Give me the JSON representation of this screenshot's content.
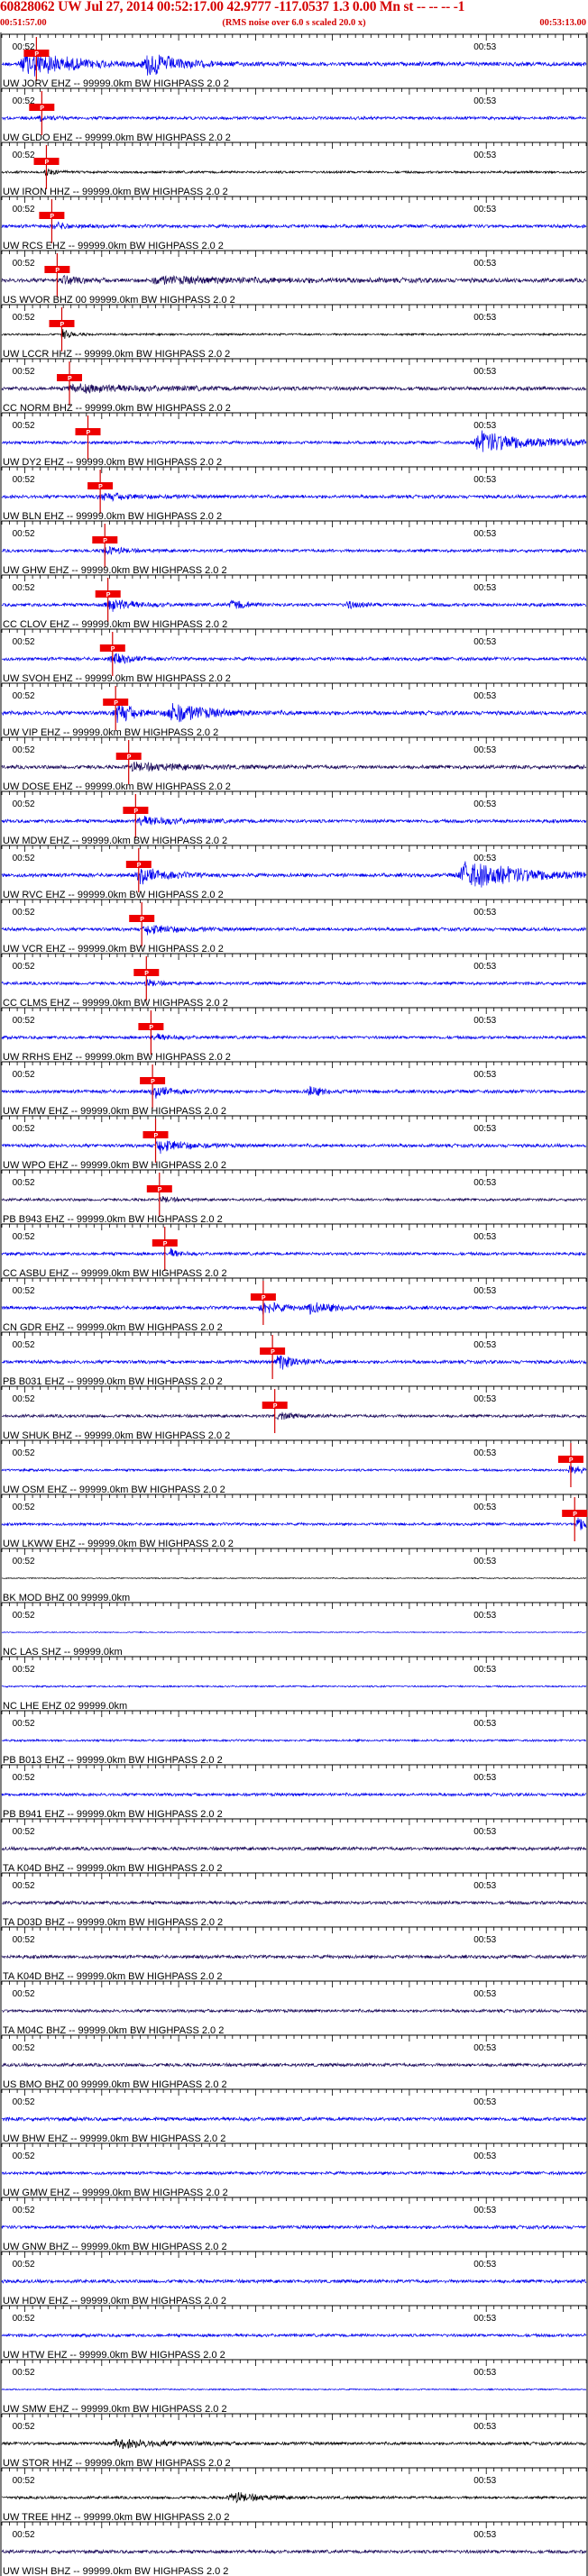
{
  "header": {
    "title": "60828062 UW Jul 27, 2014 00:52:17.00   42.9777 -117.0537  1.3 0.00 Mn st -- -- --  -1",
    "start_time": "00:51:57.00",
    "subtitle": "(RMS noise over 6.0 s scaled 20.0 x)",
    "end_time": "00:53:13.00"
  },
  "colors": {
    "title": "#d40000",
    "trace_blue": "#0000ee",
    "trace_dark": "#1a0a5a",
    "trace_black": "#000000",
    "pick_box": "#ee0000",
    "pick_line": "#d40000",
    "axis": "#000000"
  },
  "chart_data": {
    "type": "line",
    "title": "60828062 UW Jul 27, 2014 00:52:17.00   42.9777 -117.0537  1.3 0.00 Mn st -- -- --  -1",
    "x_start": "00:51:57.00",
    "x_end": "00:53:13.00",
    "tick_labels": [
      "00:52",
      "00:53"
    ],
    "tick_times_s": [
      3,
      63
    ],
    "axis_range_s": [
      0,
      76
    ],
    "pick_label": "P",
    "traces": [
      {
        "label": "UW JORV EHZ -- 99999.0km BW  HIGHPASS  2.0  2",
        "color": "blue",
        "pick_s": 4.5,
        "amp": 0.6,
        "events": [
          [
            3,
            10,
            7
          ],
          [
            19,
            6,
            6
          ]
        ]
      },
      {
        "label": "UW GLDO EHZ -- 99999.0km BW  HIGHPASS  2.0  2",
        "color": "blue",
        "pick_s": 5.2,
        "amp": 0.45,
        "events": [
          [
            5,
            3,
            2
          ]
        ]
      },
      {
        "label": "UW IRON HHZ -- 99999.0km BW  HIGHPASS  2.0  2",
        "color": "black",
        "pick_s": 5.8,
        "amp": 0.35,
        "events": [
          [
            5.8,
            2,
            3
          ]
        ]
      },
      {
        "label": "UW RCS EHZ -- 99999.0km BW  HIGHPASS  2.0  2",
        "color": "blue",
        "pick_s": 6.5,
        "amp": 0.5,
        "events": [
          [
            7,
            3,
            2
          ]
        ]
      },
      {
        "label": "US WVOR BHZ 00 99999.0km BW  HIGHPASS  2.0  2",
        "color": "dark",
        "pick_s": 7.2,
        "amp": 0.6,
        "events": [
          [
            8,
            4,
            2
          ],
          [
            20,
            30,
            1.5
          ]
        ]
      },
      {
        "label": "UW LCCR HHZ -- 99999.0km BW  HIGHPASS  2.0  2",
        "color": "black",
        "pick_s": 7.8,
        "amp": 0.3,
        "events": [
          [
            8,
            2,
            5
          ]
        ]
      },
      {
        "label": "CC NORM BHZ -- 99999.0km BW  HIGHPASS  2.0  2",
        "color": "dark",
        "pick_s": 8.8,
        "amp": 0.55,
        "events": [
          [
            9,
            20,
            2
          ]
        ]
      },
      {
        "label": "UW DY2 EHZ -- 99999.0km BW  HIGHPASS  2.0  2",
        "color": "blue",
        "pick_s": 11.2,
        "amp": 0.45,
        "events": [
          [
            62,
            14,
            7
          ]
        ]
      },
      {
        "label": "UW BLN EHZ -- 99999.0km BW  HIGHPASS  2.0  2",
        "color": "blue",
        "pick_s": 12.8,
        "amp": 0.5,
        "events": [
          [
            13,
            8,
            2
          ]
        ]
      },
      {
        "label": "UW GHW EHZ -- 99999.0km BW  HIGHPASS  2.0  2",
        "color": "blue",
        "pick_s": 13.4,
        "amp": 0.45,
        "events": [
          [
            13.5,
            4,
            3
          ]
        ]
      },
      {
        "label": "CC CLOV EHZ -- 99999.0km BW  HIGHPASS  2.0  2",
        "color": "blue",
        "pick_s": 13.8,
        "amp": 0.5,
        "events": [
          [
            14,
            5,
            4
          ],
          [
            30,
            3,
            3
          ],
          [
            45,
            3,
            2
          ]
        ]
      },
      {
        "label": "UW SVOH EHZ -- 99999.0km BW  HIGHPASS  2.0  2",
        "color": "blue",
        "pick_s": 14.4,
        "amp": 0.5,
        "events": [
          [
            14.5,
            4,
            3
          ]
        ]
      },
      {
        "label": "UW VIP EHZ -- 99999.0km BW  HIGHPASS  2.0  2",
        "color": "blue",
        "pick_s": 14.8,
        "amp": 0.6,
        "events": [
          [
            15,
            4,
            5
          ],
          [
            22,
            8,
            5
          ]
        ]
      },
      {
        "label": "UW DOSE EHZ -- 99999.0km BW  HIGHPASS  2.0  2",
        "color": "dark",
        "pick_s": 16.5,
        "amp": 0.55,
        "events": [
          [
            17,
            12,
            2
          ]
        ]
      },
      {
        "label": "UW MDW EHZ -- 99999.0km BW  HIGHPASS  2.0  2",
        "color": "blue",
        "pick_s": 17.4,
        "amp": 0.5,
        "events": [
          [
            18,
            10,
            2.5
          ]
        ]
      },
      {
        "label": "UW RVC EHZ -- 99999.0km BW  HIGHPASS  2.0  2",
        "color": "blue",
        "pick_s": 17.8,
        "amp": 0.55,
        "events": [
          [
            18,
            6,
            4
          ],
          [
            60,
            16,
            7
          ]
        ]
      },
      {
        "label": "UW VCR EHZ -- 99999.0km BW  HIGHPASS  2.0  2",
        "color": "blue",
        "pick_s": 18.2,
        "amp": 0.5,
        "events": [
          [
            19,
            6,
            3
          ]
        ]
      },
      {
        "label": "CC CLMS EHZ -- 99999.0km BW  HIGHPASS  2.0  2",
        "color": "blue",
        "pick_s": 18.8,
        "amp": 0.45,
        "events": [
          [
            19,
            3,
            2
          ]
        ]
      },
      {
        "label": "UW RRHS EHZ -- 99999.0km BW  HIGHPASS  2.0  2",
        "color": "blue",
        "pick_s": 19.4,
        "amp": 0.45,
        "events": [
          [
            20,
            4,
            2
          ]
        ]
      },
      {
        "label": "UW FMW EHZ -- 99999.0km BW  HIGHPASS  2.0  2",
        "color": "blue",
        "pick_s": 19.6,
        "amp": 0.5,
        "events": [
          [
            20,
            4,
            3
          ],
          [
            40,
            3,
            3
          ]
        ]
      },
      {
        "label": "UW WPO EHZ -- 99999.0km BW  HIGHPASS  2.0  2",
        "color": "blue",
        "pick_s": 20,
        "amp": 0.5,
        "events": [
          [
            20.5,
            6,
            4
          ]
        ]
      },
      {
        "label": "PB B943 EHZ -- 99999.0km BW  HIGHPASS  2.0  2",
        "color": "dark",
        "pick_s": 20.5,
        "amp": 0.4,
        "events": [
          [
            21,
            3,
            2
          ]
        ]
      },
      {
        "label": "CC ASBU EHZ -- 99999.0km BW  HIGHPASS  2.0  2",
        "color": "blue",
        "pick_s": 21.2,
        "amp": 0.45,
        "events": [
          [
            22,
            2,
            3
          ]
        ]
      },
      {
        "label": "CN GDR EHZ -- 99999.0km BW  HIGHPASS  2.0  2",
        "color": "blue",
        "pick_s": 34,
        "amp": 0.5,
        "events": [
          [
            34,
            4,
            4
          ],
          [
            40,
            6,
            3
          ]
        ]
      },
      {
        "label": "PB B031 EHZ -- 99999.0km BW  HIGHPASS  2.0  2",
        "color": "blue",
        "pick_s": 35.2,
        "amp": 0.5,
        "events": [
          [
            36,
            4,
            5
          ]
        ]
      },
      {
        "label": "UW SHUK BHZ -- 99999.0km BW  HIGHPASS  2.0  2",
        "color": "dark",
        "pick_s": 35.5,
        "amp": 0.45,
        "events": [
          [
            36,
            4,
            2
          ]
        ]
      },
      {
        "label": "UW OSM EHZ -- 99999.0km BW  HIGHPASS  2.0  2",
        "color": "blue",
        "pick_s": 74,
        "amp": 0.35,
        "events": [
          [
            74,
            2,
            5
          ]
        ]
      },
      {
        "label": "UW LKWW EHZ -- 99999.0km BW  HIGHPASS  2.0  2",
        "color": "blue",
        "pick_s": 74.5,
        "amp": 0.4,
        "events": [
          [
            75,
            2,
            6
          ]
        ]
      },
      {
        "label": "BK MOD BHZ 00 99999.0km",
        "color": "black",
        "pick_s": null,
        "amp": 0.15,
        "events": []
      },
      {
        "label": "NC LAS SHZ -- 99999.0km",
        "color": "blue",
        "pick_s": null,
        "amp": 0.15,
        "events": []
      },
      {
        "label": "NC LHE EHZ 02 99999.0km",
        "color": "blue",
        "pick_s": null,
        "amp": 0.25,
        "events": []
      },
      {
        "label": "PB B013 EHZ -- 99999.0km BW  HIGHPASS  2.0  2",
        "color": "blue",
        "pick_s": null,
        "amp": 0.3,
        "events": []
      },
      {
        "label": "PB B941 EHZ -- 99999.0km BW  HIGHPASS  2.0  2",
        "color": "blue",
        "pick_s": null,
        "amp": 0.45,
        "events": []
      },
      {
        "label": "TA K04D BHZ -- 99999.0km BW  HIGHPASS  2.0  2",
        "color": "dark",
        "pick_s": null,
        "amp": 0.5,
        "events": []
      },
      {
        "label": "TA D03D BHZ -- 99999.0km BW  HIGHPASS  2.0  2",
        "color": "dark",
        "pick_s": null,
        "amp": 0.5,
        "events": []
      },
      {
        "label": "TA K04D BHZ -- 99999.0km BW  HIGHPASS  2.0  2",
        "color": "dark",
        "pick_s": null,
        "amp": 0.5,
        "events": []
      },
      {
        "label": "TA M04C BHZ -- 99999.0km BW  HIGHPASS  2.0  2",
        "color": "dark",
        "pick_s": null,
        "amp": 0.45,
        "events": []
      },
      {
        "label": "US BMO BHZ 00 99999.0km BW  HIGHPASS  2.0  2",
        "color": "dark",
        "pick_s": null,
        "amp": 0.5,
        "events": []
      },
      {
        "label": "UW BHW EHZ -- 99999.0km BW  HIGHPASS  2.0  2",
        "color": "blue",
        "pick_s": null,
        "amp": 0.55,
        "events": []
      },
      {
        "label": "UW GMW EHZ -- 99999.0km BW  HIGHPASS  2.0  2",
        "color": "blue",
        "pick_s": null,
        "amp": 0.45,
        "events": []
      },
      {
        "label": "UW GNW BHZ -- 99999.0km BW  HIGHPASS  2.0  2",
        "color": "blue",
        "pick_s": null,
        "amp": 0.5,
        "events": []
      },
      {
        "label": "UW HDW EHZ -- 99999.0km BW  HIGHPASS  2.0  2",
        "color": "blue",
        "pick_s": null,
        "amp": 0.5,
        "events": []
      },
      {
        "label": "UW HTW EHZ -- 99999.0km BW  HIGHPASS  2.0  2",
        "color": "blue",
        "pick_s": null,
        "amp": 0.45,
        "events": []
      },
      {
        "label": "UW SMW EHZ -- 99999.0km BW  HIGHPASS  2.0  2",
        "color": "blue",
        "pick_s": null,
        "amp": 0.2,
        "events": []
      },
      {
        "label": "UW STOR HHZ -- 99999.0km BW  HIGHPASS  2.0  2",
        "color": "black",
        "pick_s": null,
        "amp": 0.45,
        "events": [
          [
            15,
            10,
            3
          ]
        ]
      },
      {
        "label": "UW TREE HHZ -- 99999.0km BW  HIGHPASS  2.0  2",
        "color": "black",
        "pick_s": null,
        "amp": 0.4,
        "events": [
          [
            30,
            6,
            4
          ]
        ]
      },
      {
        "label": "UW WISH BHZ -- 99999.0km BW  HIGHPASS  2.0  2",
        "color": "dark",
        "pick_s": null,
        "amp": 0.5,
        "events": []
      }
    ]
  }
}
